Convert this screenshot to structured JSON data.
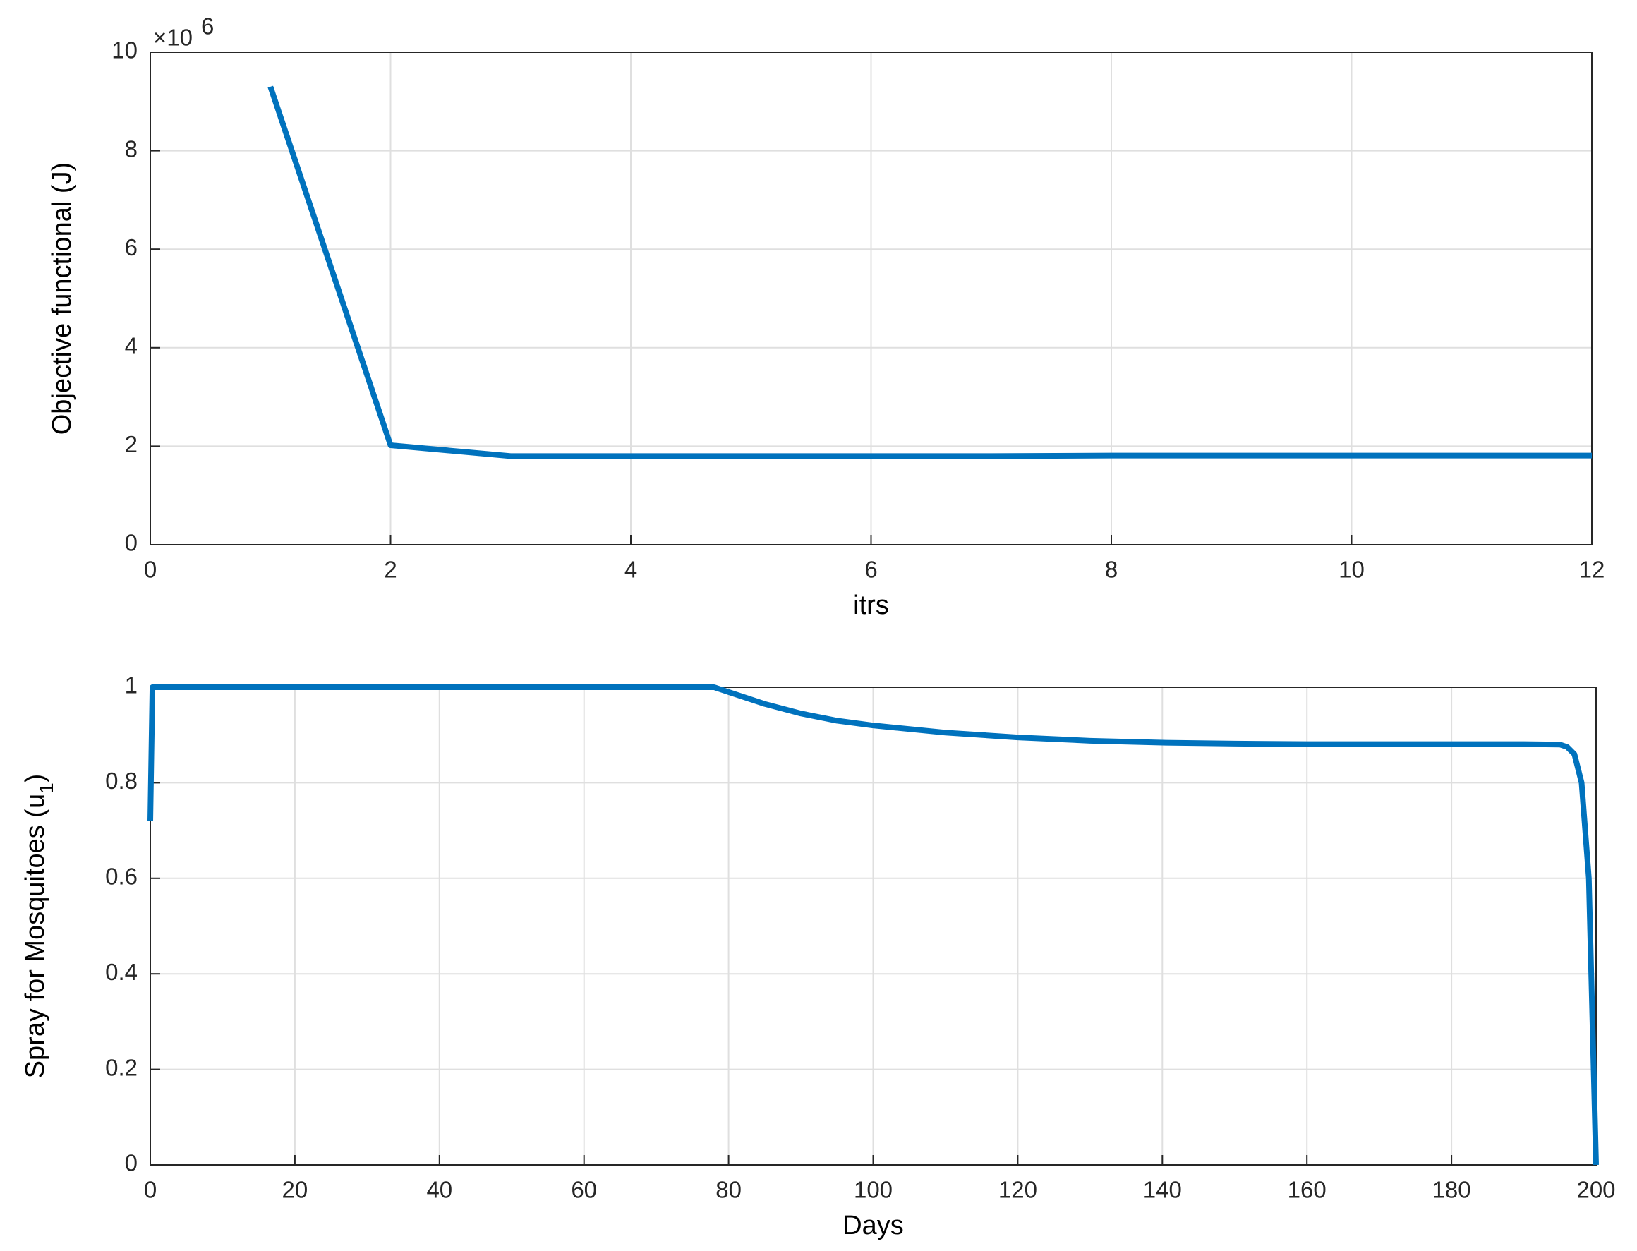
{
  "chart_data": [
    {
      "type": "line",
      "xlabel": "itrs",
      "ylabel": "Objective functional (J)",
      "y_multiplier": {
        "base": "×10",
        "exponent": "6"
      },
      "x": [
        1,
        2,
        3,
        4,
        5,
        6,
        7,
        8,
        9,
        10,
        11,
        12
      ],
      "series": [
        {
          "color": "#0072bd",
          "values": [
            9.3,
            2.02,
            1.8,
            1.8,
            1.8,
            1.8,
            1.8,
            1.81,
            1.81,
            1.81,
            1.81,
            1.81
          ]
        }
      ],
      "xlim": [
        0,
        12
      ],
      "xticks": [
        0,
        2,
        4,
        6,
        8,
        10,
        12
      ],
      "ylim": [
        0,
        10
      ],
      "yticks": [
        0,
        2,
        4,
        6,
        8,
        10
      ],
      "grid": true
    },
    {
      "type": "line",
      "xlabel": "Days",
      "ylabel": [
        "Spray for Mosquitoes (u",
        "1",
        ")"
      ],
      "x": [
        0,
        0.3,
        1,
        78,
        80,
        85,
        90,
        95,
        100,
        110,
        120,
        130,
        140,
        150,
        160,
        170,
        180,
        190,
        195,
        196,
        197,
        198,
        199,
        199.5,
        200
      ],
      "series": [
        {
          "color": "#0072bd",
          "values": [
            0.72,
            1,
            1,
            1,
            0.99,
            0.965,
            0.945,
            0.93,
            0.92,
            0.905,
            0.895,
            0.888,
            0.884,
            0.882,
            0.881,
            0.881,
            0.881,
            0.881,
            0.88,
            0.875,
            0.86,
            0.8,
            0.6,
            0.3,
            0
          ]
        }
      ],
      "xlim": [
        0,
        200
      ],
      "xticks": [
        0,
        20,
        40,
        60,
        80,
        100,
        120,
        140,
        160,
        180,
        200
      ],
      "ylim": [
        0,
        1
      ],
      "yticks": [
        0,
        0.2,
        0.4,
        0.6,
        0.8,
        1
      ],
      "grid": true
    }
  ]
}
